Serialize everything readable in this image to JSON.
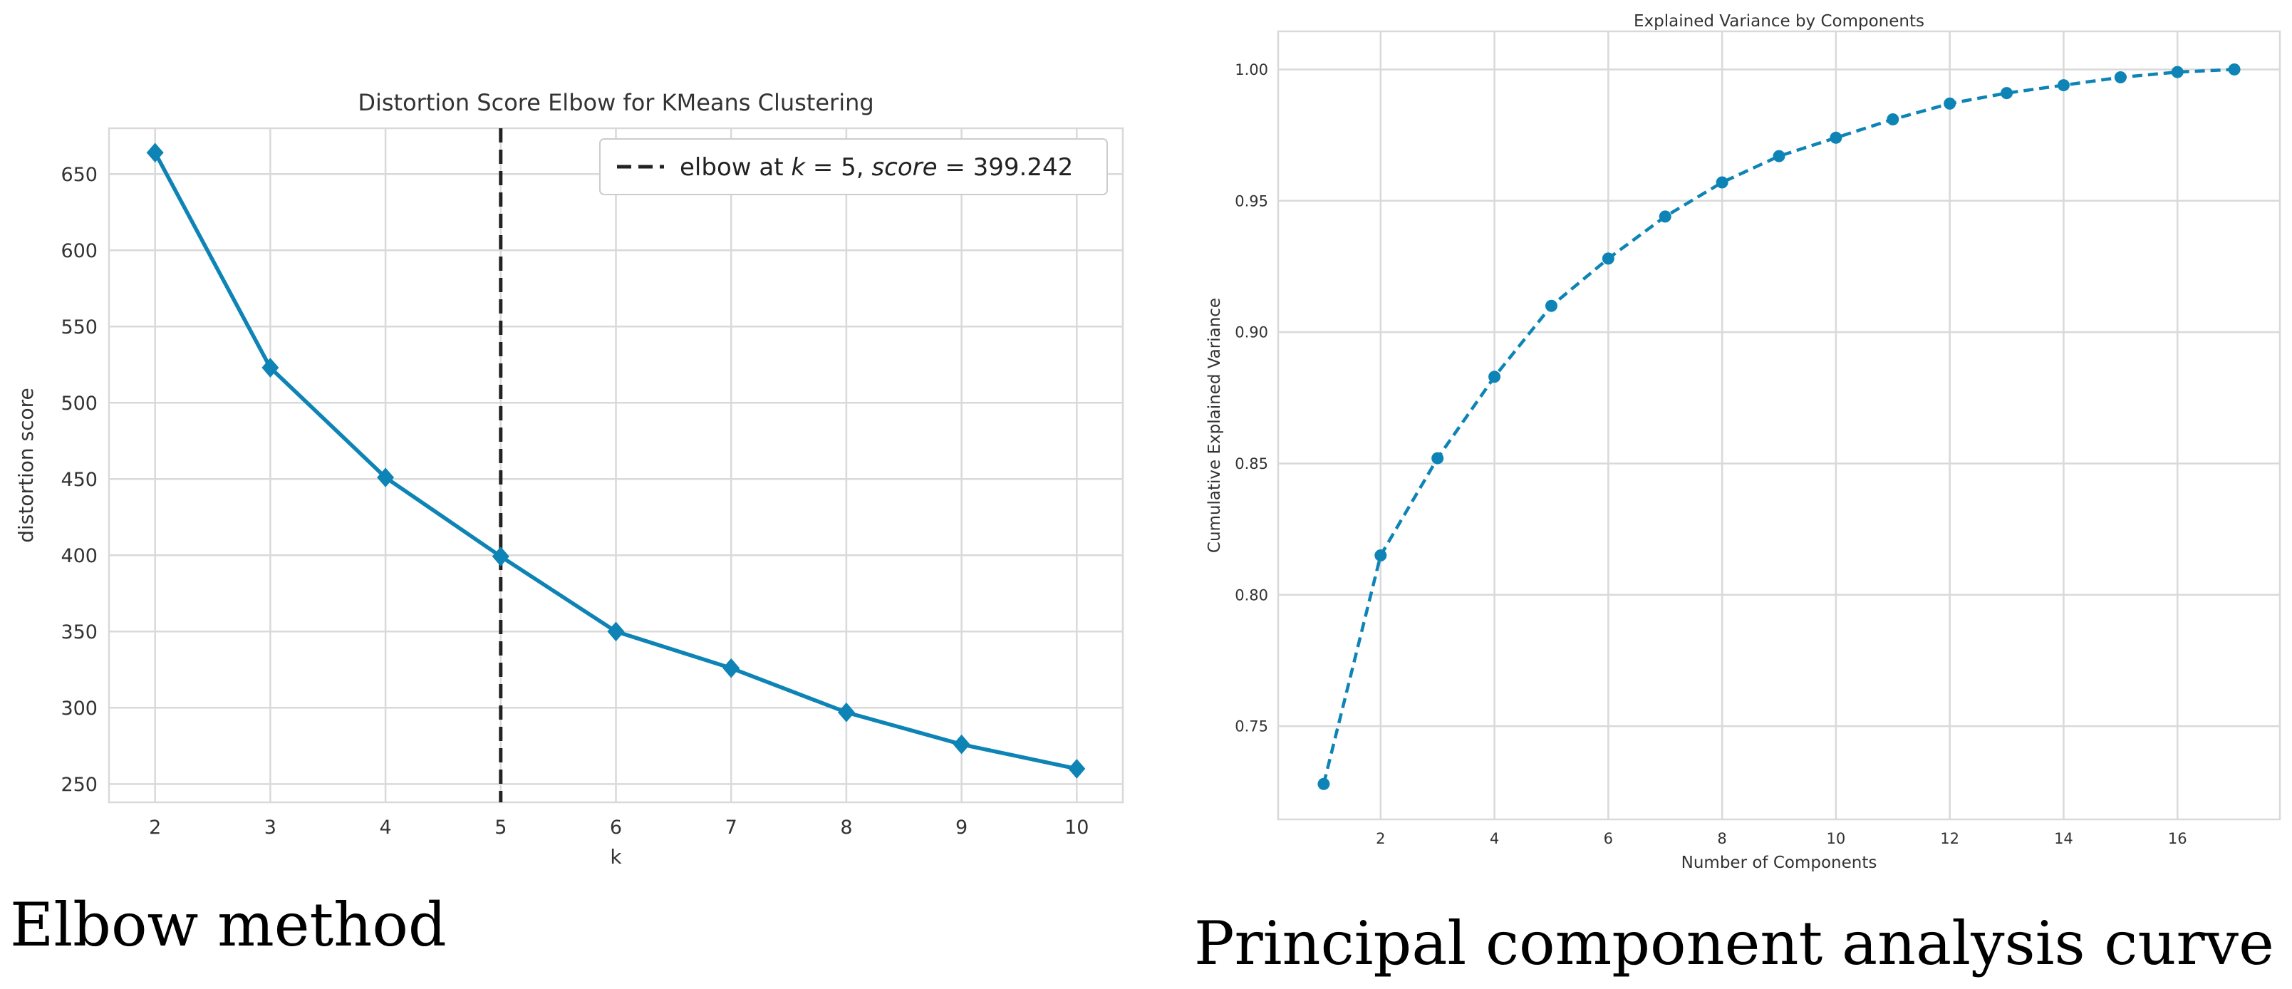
{
  "colors": {
    "series": "#0d84b5",
    "grid": "#d9d9d9",
    "axis_text": "#333333",
    "elbow_line": "#222222"
  },
  "captions": {
    "left": "Elbow method",
    "right": "Principal component analysis curve"
  },
  "chart_data": [
    {
      "type": "line",
      "title": "Distortion Score Elbow for KMeans Clustering",
      "xlabel": "k",
      "ylabel": "distortion score",
      "x": [
        2,
        3,
        4,
        5,
        6,
        7,
        8,
        9,
        10
      ],
      "series": [
        {
          "values": [
            664,
            523,
            451,
            399.242,
            350,
            326,
            297,
            276,
            260
          ],
          "marker": "diamond",
          "linestyle": "solid"
        }
      ],
      "xlim": [
        1.6,
        10.4
      ],
      "ylim": [
        238,
        680
      ],
      "xticks": [
        2,
        3,
        4,
        5,
        6,
        7,
        8,
        9,
        10
      ],
      "yticks": [
        250,
        300,
        350,
        400,
        450,
        500,
        550,
        600,
        650
      ],
      "grid": true,
      "annotation": {
        "type": "vline",
        "x": 5,
        "linestyle": "dashed"
      },
      "legend": {
        "position": "top-right",
        "parts": [
          "elbow at ",
          "k",
          " = 5, ",
          "score",
          " = 399.242"
        ]
      }
    },
    {
      "type": "line",
      "title": "Explained Variance by Components",
      "xlabel": "Number of Components",
      "ylabel": "Cumulative Explained Variance",
      "x": [
        1,
        2,
        3,
        4,
        5,
        6,
        7,
        8,
        9,
        10,
        11,
        12,
        13,
        14,
        15,
        16,
        17
      ],
      "series": [
        {
          "values": [
            0.728,
            0.815,
            0.852,
            0.883,
            0.91,
            0.928,
            0.944,
            0.957,
            0.967,
            0.974,
            0.981,
            0.987,
            0.991,
            0.994,
            0.997,
            0.999,
            1.0
          ],
          "marker": "circle",
          "linestyle": "dashed"
        }
      ],
      "xlim": [
        0.2,
        17.8
      ],
      "ylim": [
        0.7145,
        1.0145
      ],
      "xticks": [
        2,
        4,
        6,
        8,
        10,
        12,
        14,
        16
      ],
      "yticks": [
        "0.75",
        "0.80",
        "0.85",
        "0.90",
        "0.95",
        "1.00"
      ],
      "grid": true
    }
  ]
}
